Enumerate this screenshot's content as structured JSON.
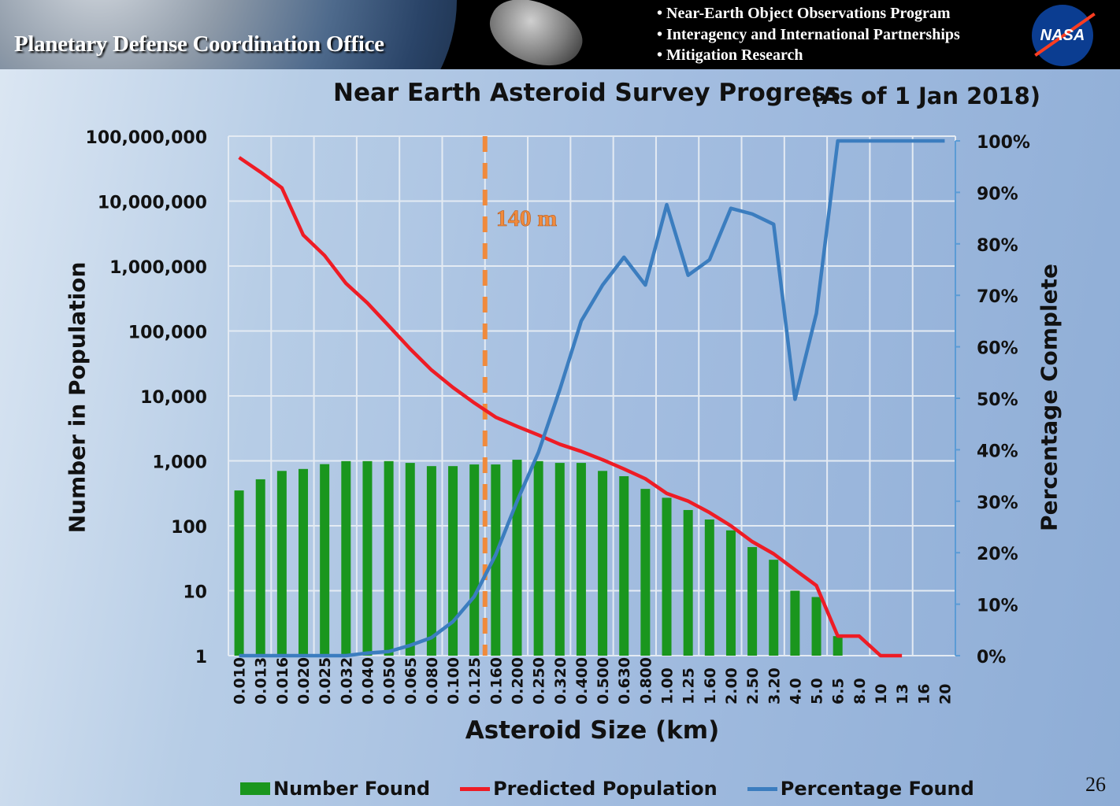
{
  "header": {
    "office": "Planetary Defense Coordination Office",
    "bullets": [
      "• Near-Earth Object Observations Program",
      "• Interagency and International Partnerships",
      "• Mitigation Research"
    ],
    "logo": "NASA"
  },
  "page_number": "26",
  "chart_data": {
    "type": "bar+line",
    "title": "Near Earth Asteroid Survey Progress",
    "subtitle": "(As of 1 Jan 2018)",
    "xlabel": "Asteroid Size (km)",
    "ylabel": "Number in Population",
    "y2label": "Percentage Complete",
    "y_scale": "log",
    "ylim": [
      1,
      100000000
    ],
    "y_ticks": [
      "1",
      "10",
      "100",
      "1,000",
      "10,000",
      "100,000",
      "1,000,000",
      "10,000,000",
      "100,000,000"
    ],
    "y2lim": [
      0,
      100
    ],
    "y2_ticks": [
      "0%",
      "10%",
      "20%",
      "30%",
      "40%",
      "50%",
      "60%",
      "70%",
      "80%",
      "90%",
      "100%"
    ],
    "grid": true,
    "legend_position": "bottom",
    "categories": [
      "0.010",
      "0.013",
      "0.016",
      "0.020",
      "0.025",
      "0.032",
      "0.040",
      "0.050",
      "0.065",
      "0.080",
      "0.100",
      "0.125",
      "0.160",
      "0.200",
      "0.250",
      "0.320",
      "0.400",
      "0.500",
      "0.630",
      "0.800",
      "1.00",
      "1.25",
      "1.60",
      "2.00",
      "2.50",
      "3.20",
      "4.0",
      "5.0",
      "6.5",
      "8.0",
      "10",
      "13",
      "16",
      "20"
    ],
    "series": [
      {
        "name": "Number Found",
        "kind": "bar",
        "axis": "left",
        "color": "#1a961e",
        "values": [
          350,
          520,
          700,
          750,
          890,
          990,
          990,
          990,
          930,
          830,
          830,
          880,
          880,
          1040,
          990,
          930,
          930,
          700,
          580,
          370,
          270,
          175,
          125,
          85,
          47,
          30,
          10,
          8,
          2,
          null,
          null,
          null,
          null,
          null
        ]
      },
      {
        "name": "Predicted Population",
        "kind": "line",
        "axis": "left",
        "color": "#ee1c25",
        "values": [
          47000000,
          28000000,
          16000000,
          3000000,
          1450000,
          540000,
          270000,
          120000,
          53000,
          25000,
          13500,
          7800,
          4700,
          3400,
          2500,
          1800,
          1400,
          1040,
          750,
          530,
          315,
          240,
          160,
          100,
          57,
          37,
          21,
          12,
          2,
          2,
          1,
          1,
          null,
          null
        ]
      },
      {
        "name": "Percentage Found",
        "kind": "line",
        "axis": "right",
        "color": "#3b7dbf",
        "values": [
          0,
          0,
          0,
          0,
          0,
          0,
          0.5,
          0.8,
          2,
          3.5,
          6.6,
          11.5,
          19.6,
          30,
          39.5,
          51.7,
          65,
          72,
          77.4,
          72,
          87.6,
          73.9,
          76.9,
          86.9,
          85.8,
          83.8,
          49.8,
          66.5,
          100,
          100,
          100,
          100,
          100,
          100
        ]
      }
    ],
    "annotation": {
      "label": "140 m",
      "color": "#f08a3c",
      "position_between": [
        "0.125",
        "0.160"
      ]
    }
  }
}
